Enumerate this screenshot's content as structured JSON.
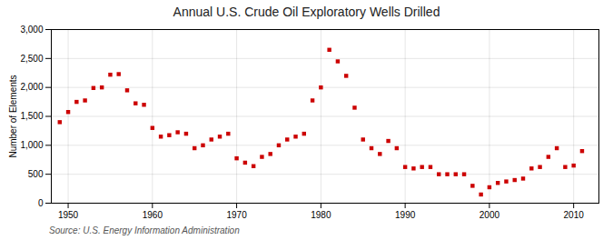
{
  "chart_data": {
    "type": "scatter",
    "title": "Annual U.S. Crude Oil Exploratory Wells Drilled",
    "ylabel": "Number of Elements",
    "annotation": "Source: U.S. Energy Information Administration",
    "x": [
      1949,
      1950,
      1951,
      1952,
      1953,
      1954,
      1955,
      1956,
      1957,
      1958,
      1959,
      1960,
      1961,
      1962,
      1963,
      1964,
      1965,
      1966,
      1967,
      1968,
      1969,
      1970,
      1971,
      1972,
      1973,
      1974,
      1975,
      1976,
      1977,
      1978,
      1979,
      1980,
      1981,
      1982,
      1983,
      1984,
      1985,
      1986,
      1987,
      1988,
      1989,
      1990,
      1991,
      1992,
      1993,
      1994,
      1995,
      1996,
      1997,
      1998,
      1999,
      2000,
      2001,
      2002,
      2003,
      2004,
      2005,
      2006,
      2007,
      2008,
      2009,
      2010,
      2011
    ],
    "values": [
      1400,
      1575,
      1750,
      1775,
      1990,
      2000,
      2220,
      2230,
      1950,
      1725,
      1700,
      1300,
      1150,
      1175,
      1225,
      1200,
      950,
      1000,
      1100,
      1150,
      1200,
      775,
      700,
      640,
      800,
      850,
      1000,
      1100,
      1150,
      1200,
      1775,
      2000,
      2650,
      2450,
      2200,
      1650,
      1100,
      950,
      850,
      1075,
      950,
      625,
      600,
      625,
      625,
      500,
      500,
      500,
      500,
      300,
      150,
      275,
      350,
      375,
      400,
      425,
      600,
      625,
      800,
      950,
      625,
      650,
      900
    ],
    "color": "#cc0000",
    "marker": "square",
    "xlim": [
      1948,
      2013
    ],
    "xticks": [
      1950,
      1960,
      1970,
      1980,
      1990,
      2000,
      2010
    ],
    "ylim": [
      0,
      3000
    ],
    "yticks": [
      0,
      500,
      {
        "value": 1000,
        "label": "1,000"
      },
      {
        "value": 1500,
        "label": "1,500"
      },
      {
        "value": 2000,
        "label": "2,000"
      },
      {
        "value": 2500,
        "label": "2,500"
      },
      {
        "value": 3000,
        "label": "3,000"
      }
    ],
    "grid": true
  }
}
